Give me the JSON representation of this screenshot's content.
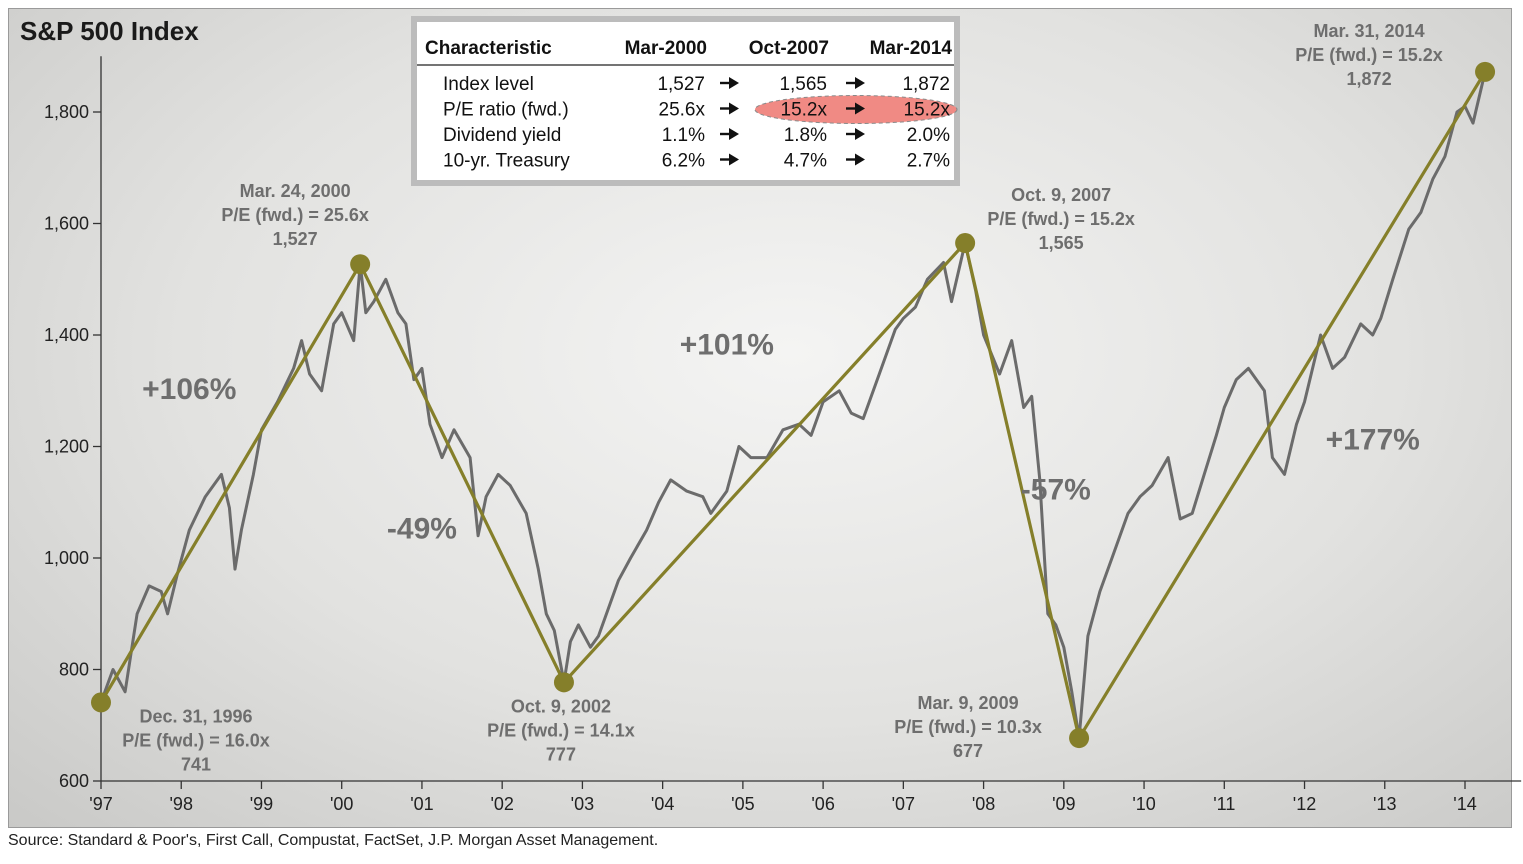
{
  "chart_data": {
    "type": "line",
    "title": "S&P 500 Index",
    "xlabel": "",
    "ylabel": "",
    "ylim": [
      600,
      1900
    ],
    "xlim": [
      1997.0,
      2014.7
    ],
    "yticks": [
      600,
      800,
      1000,
      1200,
      1400,
      1600,
      1800
    ],
    "ytick_labels": [
      "600",
      "800",
      "1,000",
      "1,200",
      "1,400",
      "1,600",
      "1,800"
    ],
    "xticks": [
      1997,
      1998,
      1999,
      2000,
      2001,
      2002,
      2003,
      2004,
      2005,
      2006,
      2007,
      2008,
      2009,
      2010,
      2011,
      2012,
      2013,
      2014
    ],
    "xtick_labels": [
      "'97",
      "'98",
      "'99",
      "'00",
      "'01",
      "'02",
      "'03",
      "'04",
      "'05",
      "'06",
      "'07",
      "'08",
      "'09",
      "'10",
      "'11",
      "'12",
      "'13",
      "'14"
    ],
    "colors": {
      "index_line": "#6b6b6b",
      "trend_line": "#857f2a",
      "marker": "#857f2a",
      "highlight": "#f08a84"
    },
    "series": [
      {
        "name": "S&P 500 Index",
        "x": [
          1997.0,
          1997.15,
          1997.3,
          1997.45,
          1997.6,
          1997.75,
          1997.83,
          1997.95,
          1998.1,
          1998.3,
          1998.5,
          1998.6,
          1998.67,
          1998.75,
          1998.9,
          1999.0,
          1999.2,
          1999.4,
          1999.5,
          1999.6,
          1999.75,
          1999.9,
          2000.0,
          2000.15,
          2000.23,
          2000.3,
          2000.4,
          2000.55,
          2000.7,
          2000.8,
          2000.9,
          2001.0,
          2001.1,
          2001.25,
          2001.4,
          2001.6,
          2001.7,
          2001.8,
          2001.95,
          2002.1,
          2002.3,
          2002.45,
          2002.55,
          2002.65,
          2002.77,
          2002.85,
          2002.95,
          2003.1,
          2003.2,
          2003.3,
          2003.45,
          2003.6,
          2003.8,
          2003.95,
          2004.1,
          2004.3,
          2004.5,
          2004.6,
          2004.8,
          2004.95,
          2005.1,
          2005.3,
          2005.5,
          2005.7,
          2005.85,
          2006.0,
          2006.2,
          2006.35,
          2006.5,
          2006.7,
          2006.9,
          2007.0,
          2007.15,
          2007.3,
          2007.5,
          2007.6,
          2007.77,
          2007.9,
          2008.0,
          2008.2,
          2008.35,
          2008.5,
          2008.6,
          2008.7,
          2008.8,
          2008.9,
          2009.0,
          2009.1,
          2009.19,
          2009.3,
          2009.45,
          2009.6,
          2009.8,
          2009.95,
          2010.1,
          2010.3,
          2010.45,
          2010.6,
          2010.75,
          2010.9,
          2011.0,
          2011.15,
          2011.3,
          2011.5,
          2011.6,
          2011.75,
          2011.9,
          2012.0,
          2012.2,
          2012.35,
          2012.5,
          2012.7,
          2012.85,
          2012.95,
          2013.1,
          2013.3,
          2013.45,
          2013.6,
          2013.75,
          2013.9,
          2014.0,
          2014.1,
          2014.25
        ],
        "values": [
          741,
          800,
          760,
          900,
          950,
          940,
          900,
          970,
          1050,
          1110,
          1150,
          1090,
          980,
          1050,
          1150,
          1230,
          1280,
          1340,
          1390,
          1330,
          1300,
          1420,
          1440,
          1390,
          1527,
          1440,
          1460,
          1500,
          1440,
          1420,
          1320,
          1340,
          1240,
          1180,
          1230,
          1180,
          1040,
          1110,
          1150,
          1130,
          1080,
          980,
          900,
          870,
          777,
          850,
          880,
          840,
          860,
          900,
          960,
          1000,
          1050,
          1100,
          1140,
          1120,
          1110,
          1080,
          1120,
          1200,
          1180,
          1180,
          1230,
          1240,
          1220,
          1280,
          1300,
          1260,
          1250,
          1330,
          1410,
          1430,
          1450,
          1500,
          1530,
          1460,
          1565,
          1480,
          1400,
          1330,
          1390,
          1270,
          1290,
          1140,
          900,
          880,
          840,
          760,
          677,
          860,
          940,
          1000,
          1080,
          1110,
          1130,
          1180,
          1070,
          1080,
          1150,
          1220,
          1270,
          1320,
          1340,
          1300,
          1180,
          1150,
          1240,
          1280,
          1400,
          1340,
          1360,
          1420,
          1400,
          1430,
          1500,
          1590,
          1620,
          1680,
          1720,
          1800,
          1810,
          1780,
          1872
        ]
      },
      {
        "name": "Trend",
        "x": [
          1997.0,
          2000.23,
          2002.77,
          2007.77,
          2009.19,
          2014.25
        ],
        "values": [
          741,
          1527,
          777,
          1565,
          677,
          1872
        ]
      }
    ],
    "points": [
      {
        "date": "Dec. 31, 1996",
        "pe": "P/E (fwd.) = 16.0x",
        "level": "741",
        "x": 1997.0,
        "y": 741
      },
      {
        "date": "Mar. 24, 2000",
        "pe": "P/E (fwd.) = 25.6x",
        "level": "1,527",
        "x": 2000.23,
        "y": 1527
      },
      {
        "date": "Oct. 9, 2002",
        "pe": "P/E (fwd.) = 14.1x",
        "level": "777",
        "x": 2002.77,
        "y": 777
      },
      {
        "date": "Oct. 9, 2007",
        "pe": "P/E (fwd.) = 15.2x",
        "level": "1,565",
        "x": 2007.77,
        "y": 1565
      },
      {
        "date": "Mar. 9, 2009",
        "pe": "P/E (fwd.) = 10.3x",
        "level": "677",
        "x": 2009.19,
        "y": 677
      },
      {
        "date": "Mar. 31, 2014",
        "pe": "P/E (fwd.) = 15.2x",
        "level": "1,872",
        "x": 2014.25,
        "y": 1872
      }
    ],
    "changes": [
      {
        "label": "+106%",
        "x": 1998.1,
        "y": 1285
      },
      {
        "label": "-49%",
        "x": 2001.0,
        "y": 1035
      },
      {
        "label": "+101%",
        "x": 2004.8,
        "y": 1365
      },
      {
        "label": "-57%",
        "x": 2008.9,
        "y": 1105
      },
      {
        "label": "+177%",
        "x": 2012.85,
        "y": 1195
      }
    ],
    "table": {
      "headers": [
        "Characteristic",
        "Mar-2000",
        "Oct-2007",
        "Mar-2014"
      ],
      "rows": [
        [
          "Index level",
          "1,527",
          "1,565",
          "1,872"
        ],
        [
          "P/E ratio (fwd.)",
          "25.6x",
          "15.2x",
          "15.2x"
        ],
        [
          "Dividend yield",
          "1.1%",
          "1.8%",
          "2.0%"
        ],
        [
          "10-yr. Treasury",
          "6.2%",
          "4.7%",
          "2.7%"
        ]
      ],
      "highlight_row": 1
    }
  },
  "source": "Source: Standard & Poor's, First Call, Compustat, FactSet, J.P. Morgan Asset Management."
}
